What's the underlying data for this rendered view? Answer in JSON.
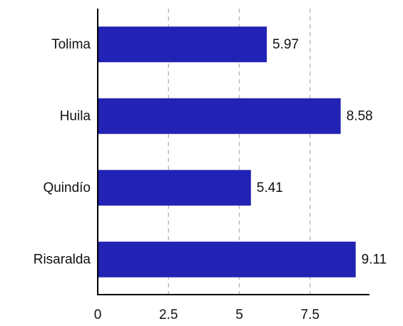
{
  "chart_data": {
    "type": "bar",
    "orientation": "horizontal",
    "title": "",
    "xlabel": "",
    "ylabel": "",
    "categories": [
      "Tolima",
      "Huila",
      "Quindío",
      "Risaralda"
    ],
    "values": [
      5.97,
      8.58,
      5.41,
      9.11
    ],
    "value_labels": [
      "5.97",
      "8.58",
      "5.41",
      "9.11"
    ],
    "xlim": [
      0,
      9.6
    ],
    "xticks": [
      0,
      2.5,
      5,
      7.5
    ],
    "xtick_labels": [
      "0",
      "2.5",
      "5",
      "7.5"
    ],
    "grid": "vertical-dashed",
    "bar_color": "#2222b4",
    "grid_color": "#bbbbbb",
    "axis_color": "#000000"
  }
}
